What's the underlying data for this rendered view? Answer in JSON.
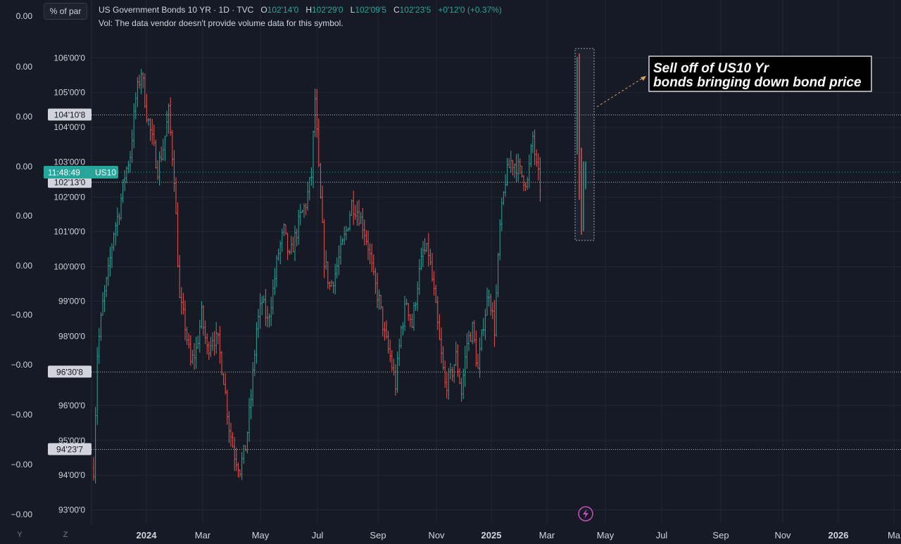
{
  "header": {
    "symbol_title": "US Government Bonds 10 YR · 1D · TVC",
    "o_label": "O",
    "o_value": "102'14'0",
    "h_label": "H",
    "h_value": "102'29'0",
    "l_label": "L",
    "l_value": "102'09'5",
    "c_label": "C",
    "c_value": "102'23'5",
    "change": "+0'12'0 (+0.37%)",
    "volume_note": "Vol: The data vendor doesn't provide volume data for this symbol."
  },
  "scale_button": "% of par",
  "bottom_buttons": [
    "Y",
    "Z"
  ],
  "price_badge": {
    "time": "11:48:49",
    "symbol": "US10"
  },
  "annotation": {
    "line1": "Sell off of US10 Yr",
    "line2": "bonds bringing down bond price"
  },
  "colors": {
    "up": "#26a69a",
    "down": "#ef5350",
    "bg": "#161a25",
    "grid": "#2a2e39",
    "badge": "#26a69a"
  },
  "chart_data": {
    "type": "ohlc",
    "price_ticks": [
      "106'00'0",
      "105'00'0",
      "104'00'0",
      "103'00'0",
      "102'00'0",
      "101'00'0",
      "100'00'0",
      "99'00'0",
      "98'00'0",
      "96'00'0",
      "95'00'0",
      "94'00'0",
      "93'00'0"
    ],
    "left_ticks": [
      "0.00",
      "0.00",
      "0.00",
      "0.00",
      "0.00",
      "0.00",
      "−0.00",
      "−0.00",
      "−0.00",
      "−0.00",
      "−0.00"
    ],
    "x_ticks": [
      "2024",
      "Mar",
      "May",
      "Jul",
      "Sep",
      "Nov",
      "2025",
      "Mar",
      "May",
      "Jul",
      "Sep",
      "Nov",
      "2026",
      "Ma"
    ],
    "hlines": [
      "104'10'8",
      "102'13'0",
      "96'30'8",
      "94'23'7"
    ],
    "ylim": [
      92.8,
      107.1
    ],
    "price_path": [
      [
        0,
        94.2
      ],
      [
        2,
        97.5
      ],
      [
        5,
        98.9
      ],
      [
        8,
        99.8
      ],
      [
        11,
        101.0
      ],
      [
        14,
        101.6
      ],
      [
        17,
        102.6
      ],
      [
        20,
        103.2
      ],
      [
        23,
        104.8
      ],
      [
        26,
        105.6
      ],
      [
        29,
        104.4
      ],
      [
        32,
        103.6
      ],
      [
        35,
        102.8
      ],
      [
        38,
        103.4
      ],
      [
        41,
        104.4
      ],
      [
        44,
        102.6
      ],
      [
        47,
        99.0
      ],
      [
        50,
        98.3
      ],
      [
        53,
        97.2
      ],
      [
        56,
        97.6
      ],
      [
        59,
        98.6
      ],
      [
        62,
        97.6
      ],
      [
        65,
        98.0
      ],
      [
        68,
        97.8
      ],
      [
        71,
        96.8
      ],
      [
        74,
        95.4
      ],
      [
        77,
        94.6
      ],
      [
        80,
        94.2
      ],
      [
        83,
        94.8
      ],
      [
        86,
        96.2
      ],
      [
        89,
        98.2
      ],
      [
        92,
        99.0
      ],
      [
        95,
        98.4
      ],
      [
        98,
        99.3
      ],
      [
        101,
        100.4
      ],
      [
        104,
        101.0
      ],
      [
        107,
        100.2
      ],
      [
        110,
        100.8
      ],
      [
        113,
        101.4
      ],
      [
        116,
        101.8
      ],
      [
        119,
        102.6
      ],
      [
        121,
        104.8
      ],
      [
        123,
        102.7
      ],
      [
        126,
        100.2
      ],
      [
        129,
        99.4
      ],
      [
        132,
        99.8
      ],
      [
        135,
        100.4
      ],
      [
        138,
        101.0
      ],
      [
        141,
        101.8
      ],
      [
        144,
        101.6
      ],
      [
        147,
        101.2
      ],
      [
        150,
        100.6
      ],
      [
        153,
        99.6
      ],
      [
        156,
        99.0
      ],
      [
        159,
        98.0
      ],
      [
        162,
        97.4
      ],
      [
        165,
        96.6
      ],
      [
        168,
        98.2
      ],
      [
        171,
        99.0
      ],
      [
        174,
        98.3
      ],
      [
        177,
        99.5
      ],
      [
        180,
        100.4
      ],
      [
        183,
        100.4
      ],
      [
        186,
        99.2
      ],
      [
        189,
        97.8
      ],
      [
        192,
        96.6
      ],
      [
        195,
        96.8
      ],
      [
        198,
        97.4
      ],
      [
        201,
        96.4
      ],
      [
        204,
        97.8
      ],
      [
        207,
        98.2
      ],
      [
        210,
        97.0
      ],
      [
        213,
        98.4
      ],
      [
        216,
        99.3
      ],
      [
        219,
        98.2
      ],
      [
        222,
        101.1
      ],
      [
        225,
        102.5
      ],
      [
        228,
        103.0
      ],
      [
        231,
        102.9
      ],
      [
        234,
        102.6
      ],
      [
        237,
        102.4
      ],
      [
        240,
        103.7
      ],
      [
        242,
        102.8
      ],
      [
        244,
        102.3
      ]
    ]
  }
}
